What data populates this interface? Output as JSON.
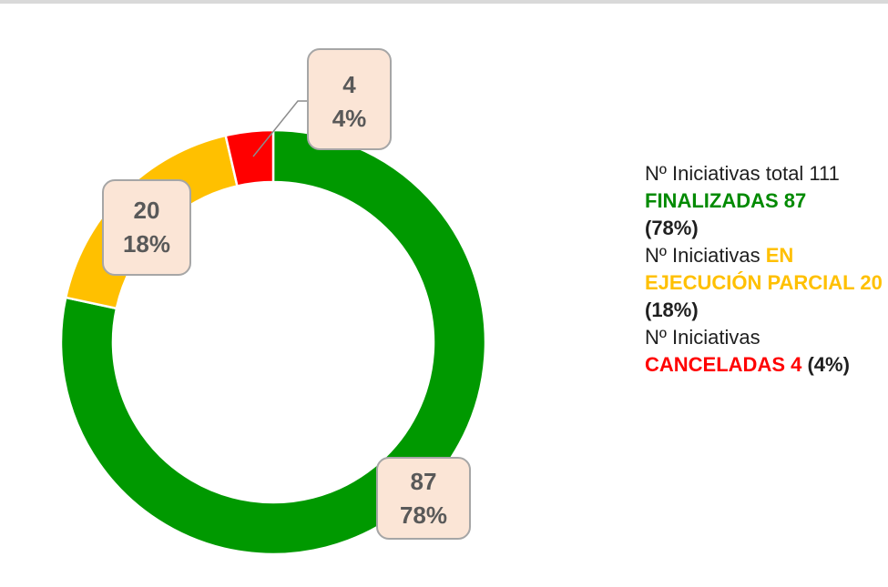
{
  "page": {
    "background": "#FFFFFF",
    "top_bar_color": "#D9D9D9"
  },
  "chart_data": {
    "type": "pie",
    "subtype": "donut",
    "title": "",
    "total": 111,
    "categories": [
      "FINALIZADAS",
      "EN EJECUCIÓN PARCIAL",
      "CANCELADAS"
    ],
    "values": [
      87,
      20,
      4
    ],
    "segments": [
      {
        "label": "FINALIZADAS",
        "value": 87,
        "percent": "78%",
        "color": "#009900"
      },
      {
        "label": "EN EJECUCIÓN PARCIAL",
        "value": 20,
        "percent": "18%",
        "color": "#FFC000"
      },
      {
        "label": "CANCELADAS",
        "value": 4,
        "percent": "4%",
        "color": "#FF0000"
      }
    ],
    "layout": {
      "legend": "none",
      "grid": false,
      "start_angle_deg": 0,
      "direction": "clockwise",
      "donut_hole_ratio": 0.755
    },
    "callouts": [
      {
        "for": "CANCELADAS",
        "value": "4",
        "percent": "4%"
      },
      {
        "for": "EN EJECUCIÓN PARCIAL",
        "value": "20",
        "percent": "18%"
      },
      {
        "for": "FINALIZADAS",
        "value": "87",
        "percent": "78%"
      }
    ],
    "style": {
      "callout_fill": "#FBE5D6",
      "callout_border": "#A6A6A6",
      "callout_text": "#595959",
      "separator": "#FFFFFF",
      "leader_line": "#8C8C8C"
    }
  },
  "summary": {
    "lines": [
      {
        "runs": [
          {
            "text": "Nº Iniciativas total 111"
          }
        ]
      },
      {
        "runs": [
          {
            "text": "FINALIZADAS 87"
          }
        ]
      },
      {
        "runs": [
          {
            "text": "(78%)"
          }
        ]
      },
      {
        "runs": [
          {
            "text": "Nº Iniciativas "
          },
          {
            "text": "EN"
          }
        ]
      },
      {
        "runs": [
          {
            "text": "EJECUCIÓN PARCIAL 20"
          }
        ]
      },
      {
        "runs": [
          {
            "text": "(18%)"
          }
        ]
      },
      {
        "runs": [
          {
            "text": "Nº Iniciativas"
          }
        ]
      },
      {
        "runs": [
          {
            "text": "CANCELADAS 4 "
          },
          {
            "text": "(4%)"
          }
        ]
      }
    ]
  }
}
